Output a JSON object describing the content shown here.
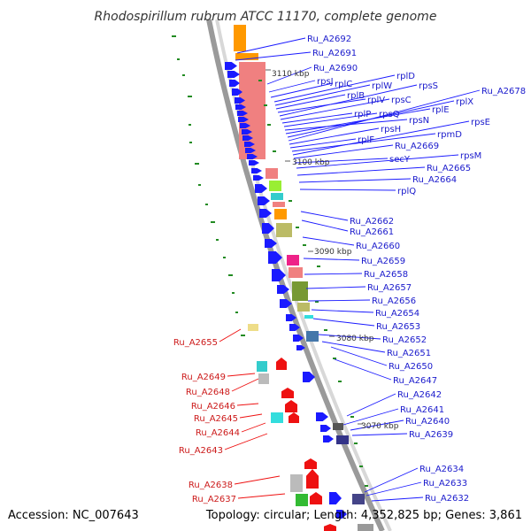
{
  "title": "Rhodospirillum rubrum ATCC 11170, complete genome",
  "accession": "Accession: NC_007643",
  "summary": "Topology: circular; Length: 4,352,825 bp; Genes: 3,861",
  "colors": {
    "forward_gene": "#1a1aff",
    "reverse_gene": "#ee1111",
    "backbone": "#9a9a9a",
    "gc_skew_dots": "#228b22",
    "ribosomal_cog": "#f08080",
    "orange_cog": "#ff9900"
  },
  "kbp_marks": [
    "3110 kbp",
    "3100 kbp",
    "3090 kbp",
    "3080 kbp",
    "3070 kbp"
  ],
  "forward_labels": [
    "Ru_A2692",
    "Ru_A2691",
    "Ru_A2690",
    "rpsJ",
    "rplC",
    "rplD",
    "rplW",
    "rplB",
    "rplV",
    "rpsS",
    "rpsC",
    "rplP",
    "rpsQ",
    "rpsN",
    "rplE",
    "rplX",
    "Ru_A2678",
    "rpsH",
    "rplF",
    "rpmD",
    "rpsE",
    "Ru_A2669",
    "secY",
    "rpsM",
    "Ru_A2665",
    "Ru_A2664",
    "rplQ",
    "Ru_A2662",
    "Ru_A2661",
    "Ru_A2660",
    "Ru_A2659",
    "Ru_A2658",
    "Ru_A2657",
    "Ru_A2656",
    "Ru_A2654",
    "Ru_A2653",
    "Ru_A2652",
    "Ru_A2651",
    "Ru_A2650",
    "Ru_A2647",
    "Ru_A2642",
    "Ru_A2641",
    "Ru_A2640",
    "Ru_A2639",
    "Ru_A2634",
    "Ru_A2633",
    "Ru_A2632"
  ],
  "reverse_labels": [
    "Ru_A2655",
    "Ru_A2649",
    "Ru_A2648",
    "Ru_A2646",
    "Ru_A2645",
    "Ru_A2644",
    "Ru_A2643",
    "Ru_A2638",
    "Ru_A2637"
  ]
}
